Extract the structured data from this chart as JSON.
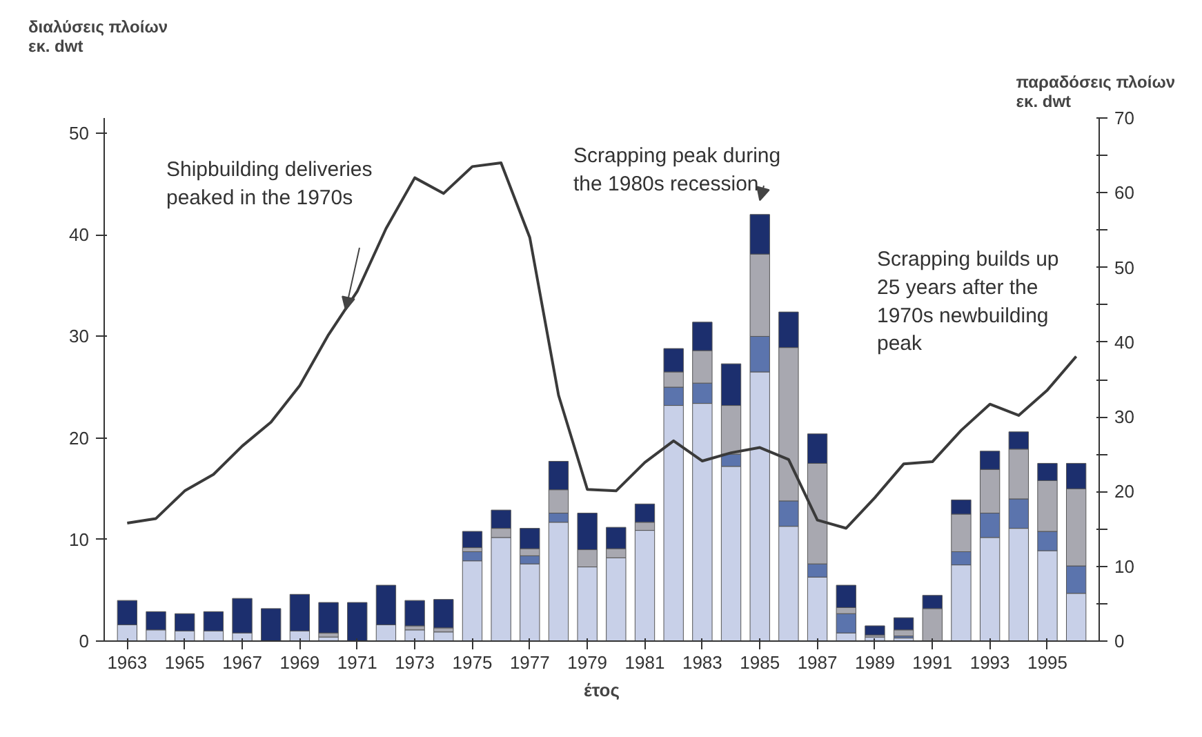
{
  "chart_data": {
    "type": "bar",
    "stacked": true,
    "x": [
      1963,
      1964,
      1965,
      1966,
      1967,
      1968,
      1969,
      1970,
      1971,
      1972,
      1973,
      1974,
      1975,
      1976,
      1977,
      1978,
      1979,
      1980,
      1981,
      1982,
      1983,
      1984,
      1985,
      1986,
      1987,
      1988,
      1989,
      1990,
      1991,
      1992,
      1993,
      1994,
      1995,
      1996
    ],
    "series": [
      {
        "color": "#c8d0e8",
        "values": [
          1.6,
          1.1,
          1.0,
          1.0,
          0.8,
          null,
          1.0,
          0.4,
          null,
          1.6,
          1.1,
          0.9,
          7.9,
          10.2,
          7.6,
          11.7,
          7.3,
          8.2,
          10.9,
          23.2,
          23.4,
          17.2,
          26.5,
          11.3,
          6.3,
          0.8,
          0.4,
          0.3,
          null,
          7.5,
          10.2,
          11.1,
          8.9,
          4.7
        ]
      },
      {
        "color": "#5b74ad",
        "values": [
          0,
          0,
          0,
          0,
          0,
          0,
          0,
          0,
          0,
          0,
          0,
          0,
          0.9,
          0,
          0.8,
          0.9,
          0,
          0,
          0,
          1.8,
          2.0,
          1.2,
          3.5,
          2.5,
          1.3,
          1.9,
          0,
          0.2,
          0,
          1.3,
          2.4,
          2.9,
          1.9,
          2.7
        ]
      },
      {
        "color": "#a8a8b0",
        "values": [
          0,
          0,
          0,
          0,
          0,
          0,
          0,
          0.4,
          0,
          0,
          0.4,
          0.4,
          0.4,
          0.9,
          0.7,
          2.3,
          1.7,
          0.9,
          0.8,
          1.5,
          3.2,
          4.8,
          8.1,
          15.1,
          9.9,
          0.6,
          0.2,
          0.6,
          3.2,
          3.7,
          4.3,
          4.9,
          5.0,
          7.6
        ]
      },
      {
        "color": "#1c2f6e",
        "values": [
          2.4,
          1.8,
          1.7,
          1.9,
          3.4,
          3.2,
          3.6,
          3.0,
          3.8,
          3.9,
          2.5,
          2.8,
          1.6,
          1.8,
          2.0,
          2.8,
          3.6,
          2.1,
          1.8,
          2.3,
          2.8,
          4.1,
          3.9,
          3.5,
          2.9,
          2.2,
          0.9,
          1.2,
          1.3,
          1.4,
          1.8,
          1.7,
          1.7,
          2.5
        ]
      },
      {
        "type": "line",
        "axis": "y2",
        "color": "#3a3a3a",
        "values": [
          15.8,
          16.4,
          20.1,
          22.3,
          26.1,
          29.3,
          34.2,
          41.0,
          46.8,
          55.2,
          62.0,
          59.9,
          63.5,
          64.0,
          54.0,
          32.9,
          20.3,
          20.1,
          23.9,
          26.8,
          24.1,
          25.2,
          25.9,
          24.3,
          16.2,
          15.1,
          19.2,
          23.7,
          24.0,
          28.2,
          31.7,
          30.2,
          33.6,
          38.1
        ]
      }
    ],
    "xlabel": "έτος",
    "ylabel": "διαλύσεις πλοίων\nεκ. dwt",
    "y2label": "παραδόσεις πλοίων\nεκ. dwt",
    "xlim": [
      1962.2,
      1996.8
    ],
    "xticks": [
      1963,
      1965,
      1967,
      1969,
      1971,
      1973,
      1975,
      1977,
      1979,
      1981,
      1983,
      1985,
      1987,
      1989,
      1991,
      1993,
      1995
    ],
    "ylim": [
      0,
      51.5
    ],
    "yticks": [
      0,
      10,
      20,
      30,
      40,
      50
    ],
    "y2lim": [
      0,
      70
    ],
    "y2ticks": [
      0,
      {
        "value": 5,
        "label": null
      },
      10,
      {
        "value": 15,
        "label": null
      },
      20,
      {
        "value": 25,
        "label": null
      },
      30,
      {
        "value": 35,
        "label": null
      },
      40,
      {
        "value": 45,
        "label": null
      },
      50,
      {
        "value": 55,
        "label": null
      },
      60,
      {
        "value": 65,
        "label": null
      },
      70
    ],
    "annotations": [
      "Shipbuilding deliveries\npeaked in the 1970s",
      {
        "text": "Scrapping peak during\nthe 1980s recession",
        "x": 1985,
        "y": 42.4
      },
      "Scrapping builds up\n25 years after the\n1970s newbuilding\npeak"
    ],
    "grid": false
  }
}
